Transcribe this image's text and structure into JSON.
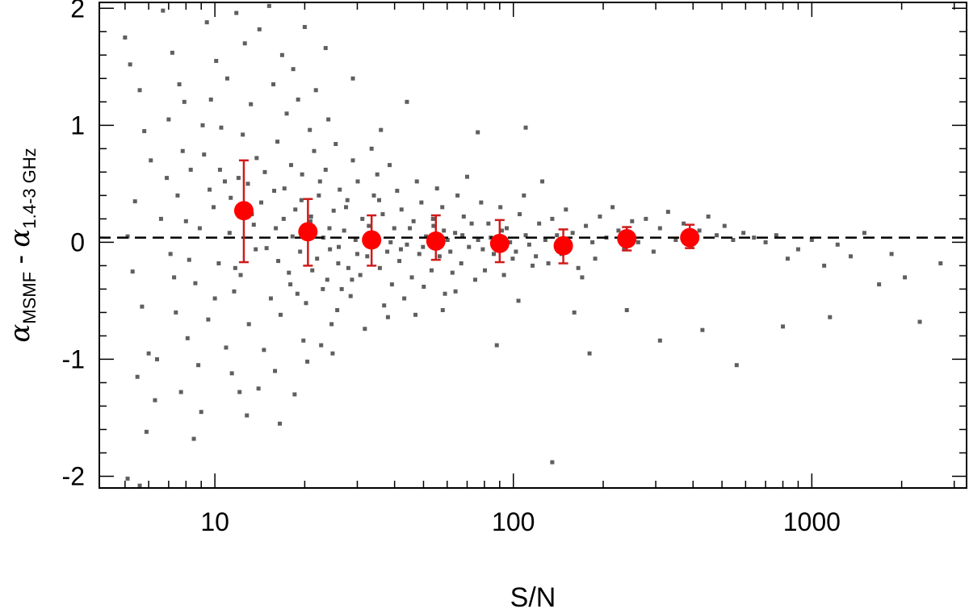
{
  "chart_data": {
    "type": "scatter",
    "title": "",
    "xlabel": "S/N",
    "ylabel": {
      "alpha_symbol": "α",
      "first_subscript": "MSMF",
      "minus": " - ",
      "second_subscript": "1.4-3 GHz"
    },
    "x_scale": "log",
    "xlim": [
      4.1,
      3300
    ],
    "ylim": [
      -2.1,
      2.05
    ],
    "x_ticks": [
      {
        "value": 10,
        "label": "10"
      },
      {
        "value": 100,
        "label": "100"
      },
      {
        "value": 1000,
        "label": "1000"
      }
    ],
    "y_ticks": [
      {
        "value": 2,
        "label": "2"
      },
      {
        "value": 1,
        "label": "1"
      },
      {
        "value": 0,
        "label": "0"
      },
      {
        "value": -1,
        "label": "-1"
      },
      {
        "value": -2,
        "label": "-2"
      }
    ],
    "reference_line": {
      "y": 0.04,
      "style": "dashed",
      "color": "#000000"
    },
    "scatter_color": "#5f5f5f",
    "binned_color": "#ff0000",
    "errorbar_color": "#d11a1a",
    "grid": false,
    "legend": "none",
    "binned_series": [
      {
        "x": 12.5,
        "y": 0.27,
        "yerr_low": 0.44,
        "yerr_high": 0.43
      },
      {
        "x": 20.5,
        "y": 0.09,
        "yerr_low": 0.29,
        "yerr_high": 0.28
      },
      {
        "x": 33.5,
        "y": 0.02,
        "yerr_low": 0.22,
        "yerr_high": 0.21
      },
      {
        "x": 55,
        "y": 0.01,
        "yerr_low": 0.16,
        "yerr_high": 0.22
      },
      {
        "x": 90,
        "y": -0.01,
        "yerr_low": 0.16,
        "yerr_high": 0.2
      },
      {
        "x": 147,
        "y": -0.03,
        "yerr_low": 0.15,
        "yerr_high": 0.14
      },
      {
        "x": 240,
        "y": 0.03,
        "yerr_low": 0.1,
        "yerr_high": 0.1
      },
      {
        "x": 390,
        "y": 0.04,
        "yerr_low": 0.09,
        "yerr_high": 0.11
      }
    ],
    "scatter_series": [
      [
        5.0,
        1.75
      ],
      [
        5.2,
        1.52
      ],
      [
        5.6,
        1.3
      ],
      [
        5.8,
        0.95
      ],
      [
        6.1,
        0.7
      ],
      [
        5.4,
        0.35
      ],
      [
        5.1,
        0.05
      ],
      [
        5.3,
        -0.25
      ],
      [
        5.7,
        -0.55
      ],
      [
        6.0,
        -0.95
      ],
      [
        5.5,
        -1.15
      ],
      [
        6.3,
        -1.35
      ],
      [
        5.9,
        -1.62
      ],
      [
        5.1,
        -2.02
      ],
      [
        5.6,
        -2.08
      ],
      [
        6.4,
        -1.0
      ],
      [
        6.7,
        1.98
      ],
      [
        7.2,
        1.62
      ],
      [
        7.6,
        1.35
      ],
      [
        7.0,
        1.05
      ],
      [
        7.8,
        0.78
      ],
      [
        8.3,
        0.62
      ],
      [
        7.5,
        0.4
      ],
      [
        8.0,
        0.18
      ],
      [
        7.1,
        -0.1
      ],
      [
        8.6,
        -0.35
      ],
      [
        7.4,
        -0.6
      ],
      [
        8.1,
        -0.82
      ],
      [
        8.8,
        -1.05
      ],
      [
        7.7,
        -1.28
      ],
      [
        9.0,
        -1.45
      ],
      [
        8.5,
        -1.68
      ],
      [
        9.4,
        1.88
      ],
      [
        10.1,
        1.55
      ],
      [
        9.7,
        1.22
      ],
      [
        10.5,
        0.98
      ],
      [
        9.2,
        0.75
      ],
      [
        10.8,
        0.52
      ],
      [
        9.9,
        0.3
      ],
      [
        11.2,
        0.08
      ],
      [
        10.3,
        -0.18
      ],
      [
        11.6,
        -0.42
      ],
      [
        9.5,
        -0.66
      ],
      [
        10.9,
        -0.9
      ],
      [
        11.4,
        -1.12
      ],
      [
        12.1,
        -1.28
      ],
      [
        11.8,
        1.96
      ],
      [
        12.6,
        1.7
      ],
      [
        11.0,
        1.4
      ],
      [
        13.2,
        1.18
      ],
      [
        12.4,
        0.92
      ],
      [
        13.8,
        0.72
      ],
      [
        12.9,
        0.5
      ],
      [
        14.3,
        0.34
      ],
      [
        13.5,
        0.15
      ],
      [
        14.9,
        -0.05
      ],
      [
        12.2,
        -0.28
      ],
      [
        15.4,
        -0.48
      ],
      [
        13.0,
        -0.7
      ],
      [
        14.6,
        -0.92
      ],
      [
        15.9,
        -1.1
      ],
      [
        16.5,
        -1.55
      ],
      [
        15.2,
        2.02
      ],
      [
        14.1,
        1.82
      ],
      [
        16.8,
        1.6
      ],
      [
        15.7,
        1.35
      ],
      [
        17.4,
        1.1
      ],
      [
        16.2,
        0.86
      ],
      [
        18.0,
        0.66
      ],
      [
        17.1,
        0.46
      ],
      [
        18.6,
        0.28
      ],
      [
        16.0,
        0.12
      ],
      [
        19.3,
        -0.08
      ],
      [
        17.7,
        -0.26
      ],
      [
        18.9,
        -0.44
      ],
      [
        16.6,
        -0.62
      ],
      [
        19.8,
        -0.84
      ],
      [
        20.4,
        -1.02
      ],
      [
        18.3,
        1.48
      ],
      [
        19.0,
        1.22
      ],
      [
        20.8,
        0.96
      ],
      [
        21.5,
        0.78
      ],
      [
        19.6,
        0.58
      ],
      [
        22.3,
        0.4
      ],
      [
        21.0,
        0.22
      ],
      [
        23.1,
        0.04
      ],
      [
        22.0,
        -0.14
      ],
      [
        23.8,
        -0.32
      ],
      [
        20.2,
        -0.52
      ],
      [
        24.6,
        -0.7
      ],
      [
        22.7,
        -0.88
      ],
      [
        21.8,
        1.3
      ],
      [
        24.0,
        1.05
      ],
      [
        25.4,
        0.84
      ],
      [
        23.5,
        0.62
      ],
      [
        26.2,
        0.45
      ],
      [
        25.0,
        0.27
      ],
      [
        27.1,
        0.1
      ],
      [
        24.3,
        -0.06
      ],
      [
        28.0,
        -0.22
      ],
      [
        26.6,
        -0.4
      ],
      [
        25.7,
        -0.58
      ],
      [
        29.0,
        0.7
      ],
      [
        30.1,
        0.52
      ],
      [
        27.8,
        0.36
      ],
      [
        31.2,
        0.2
      ],
      [
        29.6,
        0.02
      ],
      [
        32.4,
        -0.12
      ],
      [
        30.7,
        -0.28
      ],
      [
        28.5,
        -0.46
      ],
      [
        33.5,
        0.8
      ],
      [
        35.0,
        0.58
      ],
      [
        34.1,
        0.4
      ],
      [
        36.5,
        0.24
      ],
      [
        33.0,
        0.08
      ],
      [
        37.8,
        -0.08
      ],
      [
        35.7,
        -0.22
      ],
      [
        39.2,
        -0.36
      ],
      [
        36.9,
        -0.54
      ],
      [
        38.5,
        0.66
      ],
      [
        40.8,
        0.44
      ],
      [
        42.2,
        0.28
      ],
      [
        39.9,
        0.12
      ],
      [
        44.0,
        -0.02
      ],
      [
        41.5,
        -0.16
      ],
      [
        45.7,
        -0.3
      ],
      [
        43.1,
        -0.48
      ],
      [
        47.5,
        0.52
      ],
      [
        49.2,
        0.34
      ],
      [
        46.3,
        0.18
      ],
      [
        51.0,
        0.05
      ],
      [
        48.4,
        -0.1
      ],
      [
        53.2,
        -0.24
      ],
      [
        50.1,
        -0.38
      ],
      [
        55.5,
        0.46
      ],
      [
        57.8,
        0.3
      ],
      [
        54.0,
        0.14
      ],
      [
        60.2,
        0.02
      ],
      [
        56.6,
        -0.12
      ],
      [
        62.5,
        -0.26
      ],
      [
        59.0,
        -0.44
      ],
      [
        65.0,
        0.4
      ],
      [
        68.2,
        0.22
      ],
      [
        63.8,
        0.08
      ],
      [
        71.0,
        -0.04
      ],
      [
        66.9,
        -0.18
      ],
      [
        74.5,
        -0.32
      ],
      [
        70.0,
        0.56
      ],
      [
        78.0,
        0.34
      ],
      [
        82.5,
        0.16
      ],
      [
        76.2,
        0.02
      ],
      [
        86.0,
        -0.1
      ],
      [
        80.3,
        -0.24
      ],
      [
        90.5,
        0.3
      ],
      [
        95.0,
        0.12
      ],
      [
        88.1,
        -0.02
      ],
      [
        99.5,
        -0.14
      ],
      [
        93.0,
        -0.28
      ],
      [
        105.0,
        0.24
      ],
      [
        110.0,
        0.06
      ],
      [
        102.0,
        -0.08
      ],
      [
        116.0,
        -0.2
      ],
      [
        108.5,
        0.4
      ],
      [
        122.0,
        0.16
      ],
      [
        128.0,
        0.02
      ],
      [
        119.0,
        -0.12
      ],
      [
        135.0,
        0.2
      ],
      [
        142.0,
        -0.04
      ],
      [
        131.0,
        -0.18
      ],
      [
        150.0,
        0.28
      ],
      [
        158.0,
        0.08
      ],
      [
        145.0,
        -0.1
      ],
      [
        165.0,
        -0.22
      ],
      [
        175.0,
        0.14
      ],
      [
        184.0,
        0.0
      ],
      [
        170.0,
        -0.3
      ],
      [
        195.0,
        0.22
      ],
      [
        205.0,
        0.04
      ],
      [
        188.0,
        -0.14
      ],
      [
        215.0,
        0.3
      ],
      [
        225.0,
        0.1
      ],
      [
        235.0,
        -0.06
      ],
      [
        250.0,
        0.18
      ],
      [
        262.0,
        0.0
      ],
      [
        278.0,
        0.2
      ],
      [
        295.0,
        -0.08
      ],
      [
        310.0,
        0.12
      ],
      [
        330.0,
        0.26
      ],
      [
        350.0,
        0.02
      ],
      [
        372.0,
        0.16
      ],
      [
        395.0,
        -0.04
      ],
      [
        420.0,
        0.1
      ],
      [
        450.0,
        0.22
      ],
      [
        480.0,
        0.06
      ],
      [
        510.0,
        0.14
      ],
      [
        545.0,
        0.02
      ],
      [
        590.0,
        0.08
      ],
      [
        640.0,
        0.04
      ],
      [
        700.0,
        0.0
      ],
      [
        760.0,
        0.06
      ],
      [
        830.0,
        -0.14
      ],
      [
        900.0,
        -0.06
      ],
      [
        1000.0,
        0.02
      ],
      [
        1100.0,
        -0.2
      ],
      [
        1220.0,
        -0.02
      ],
      [
        1350.0,
        -0.12
      ],
      [
        1500.0,
        0.08
      ],
      [
        1680.0,
        -0.36
      ],
      [
        1850.0,
        -0.1
      ],
      [
        2050.0,
        -0.3
      ],
      [
        2300.0,
        -0.68
      ],
      [
        2700.0,
        -0.18
      ],
      [
        1150.0,
        -0.64
      ],
      [
        800.0,
        -0.72
      ],
      [
        560.0,
        -1.05
      ],
      [
        430.0,
        -0.75
      ],
      [
        310.0,
        -0.84
      ],
      [
        180.0,
        -0.95
      ],
      [
        135.0,
        -1.88
      ],
      [
        88.0,
        -0.88
      ],
      [
        104.0,
        -0.5
      ],
      [
        160.0,
        -0.6
      ],
      [
        240.0,
        -0.58
      ],
      [
        125.0,
        0.52
      ],
      [
        110.0,
        0.98
      ],
      [
        76.0,
        0.94
      ],
      [
        44.0,
        1.2
      ],
      [
        36.0,
        0.96
      ],
      [
        29.0,
        1.4
      ],
      [
        23.5,
        1.66
      ],
      [
        20.0,
        1.84
      ],
      [
        18.5,
        -1.3
      ],
      [
        24.8,
        -0.95
      ],
      [
        31.8,
        -0.74
      ],
      [
        38.0,
        -0.64
      ],
      [
        47.0,
        -0.62
      ],
      [
        58.0,
        -0.58
      ],
      [
        64.0,
        -0.42
      ],
      [
        12.8,
        -1.48
      ],
      [
        14.0,
        -1.25
      ],
      [
        8.2,
        -0.15
      ],
      [
        8.9,
        0.12
      ],
      [
        9.6,
        0.45
      ],
      [
        10.4,
        0.62
      ],
      [
        11.3,
        0.38
      ],
      [
        12.0,
        0.55
      ],
      [
        13.3,
        0.24
      ],
      [
        14.7,
        0.6
      ],
      [
        15.8,
        0.44
      ],
      [
        17.0,
        0.2
      ],
      [
        18.2,
        0.05
      ],
      [
        19.5,
        0.36
      ],
      [
        20.9,
        0.18
      ],
      [
        22.5,
        0.52
      ],
      [
        24.2,
        0.12
      ],
      [
        26.0,
        -0.04
      ],
      [
        27.5,
        0.3
      ],
      [
        30.0,
        -0.1
      ],
      [
        32.8,
        0.14
      ],
      [
        35.5,
        0.36
      ],
      [
        38.8,
        0.0
      ],
      [
        42.0,
        -0.06
      ],
      [
        45.0,
        0.12
      ],
      [
        49.8,
        -0.04
      ],
      [
        53.8,
        0.2
      ],
      [
        58.5,
        0.1
      ],
      [
        61.5,
        -0.08
      ],
      [
        67.5,
        0.06
      ],
      [
        72.5,
        0.16
      ],
      [
        79.0,
        -0.06
      ],
      [
        84.0,
        0.04
      ],
      [
        91.5,
        0.1
      ],
      [
        97.5,
        0.0
      ],
      [
        113.0,
        -0.02
      ],
      [
        140.0,
        0.06
      ],
      [
        10.0,
        -0.48
      ],
      [
        11.7,
        -0.22
      ],
      [
        13.7,
        -0.06
      ],
      [
        16.3,
        -0.16
      ],
      [
        17.9,
        -0.36
      ],
      [
        21.2,
        -0.24
      ],
      [
        23.0,
        -0.4
      ],
      [
        25.9,
        -0.18
      ],
      [
        28.8,
        -0.32
      ],
      [
        33.2,
        -0.04
      ],
      [
        6.6,
        0.2
      ],
      [
        7.3,
        -0.3
      ],
      [
        6.9,
        0.55
      ],
      [
        7.9,
        1.2
      ],
      [
        9.1,
        1.0
      ]
    ]
  }
}
